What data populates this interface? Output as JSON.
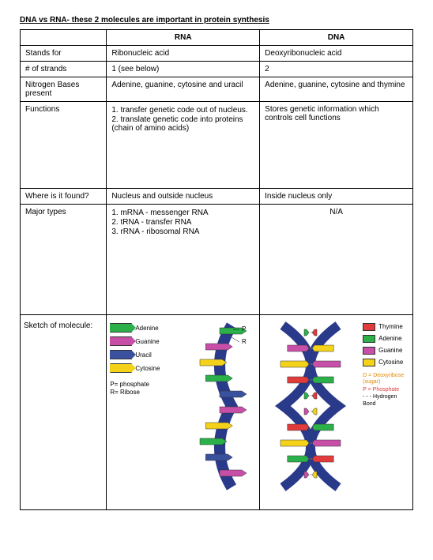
{
  "title": "DNA vs RNA- these 2 molecules are important in protein synthesis",
  "headers": {
    "col1": "",
    "col2": "RNA",
    "col3": "DNA"
  },
  "rows": {
    "stands_for": {
      "label": "Stands for",
      "rna": "Ribonucleic acid",
      "dna": "Deoxyribonucleic acid"
    },
    "strands": {
      "label": "# of strands",
      "rna": "1 (see below)",
      "dna": "2"
    },
    "bases": {
      "label": "Nitrogen Bases present",
      "rna": "Adenine, guanine, cytosine and uracil",
      "dna": "Adenine, guanine, cytosine and thymine"
    },
    "functions": {
      "label": "Functions",
      "rna1": "1. transfer genetic code out of nucleus.",
      "rna2": "2. translate genetic code into proteins (chain of amino acids)",
      "dna": "Stores genetic information which controls cell functions"
    },
    "where": {
      "label": "Where is it found?",
      "rna": "Nucleus and outside nucleus",
      "dna": "Inside nucleus only"
    },
    "types": {
      "label": "Major types",
      "rna1": "1. mRNA - messenger RNA",
      "rna2": "2. tRNA - transfer RNA",
      "rna3": "3. rRNA - ribosomal RNA",
      "dna": "N/A"
    },
    "sketch": {
      "label": "Sketch of molecule:"
    }
  },
  "rna_legend": {
    "adenine": {
      "label": "Adenine",
      "color": "#2bb04a"
    },
    "guanine": {
      "label": "Guanine",
      "color": "#c84fa8"
    },
    "uracil": {
      "label": "Uracil",
      "color": "#3a519e"
    },
    "cytosine": {
      "label": "Cytosine",
      "color": "#f5d21a"
    },
    "p": "P= phosphate",
    "r": "R= Ribose"
  },
  "dna_legend": {
    "thymine": {
      "label": "Thymine",
      "color": "#e23b3b"
    },
    "adenine": {
      "label": "Adenine",
      "color": "#2bb04a"
    },
    "guanine": {
      "label": "Guanine",
      "color": "#c84fa8"
    },
    "cytosine": {
      "label": "Cytosine",
      "color": "#f5d21a"
    },
    "d": "D = Deoxyribose (sugar)",
    "p": "P = Phosphate",
    "h": "- - -  Hydrogen Bond",
    "d_color": "#e08a00"
  },
  "rna_molecule": {
    "backbone_color": "#2a3a8a",
    "bases": [
      {
        "c": "#2bb04a"
      },
      {
        "c": "#c84fa8"
      },
      {
        "c": "#f5d21a"
      },
      {
        "c": "#2bb04a"
      },
      {
        "c": "#3a519e"
      },
      {
        "c": "#c84fa8"
      },
      {
        "c": "#f5d21a"
      },
      {
        "c": "#2bb04a"
      },
      {
        "c": "#3a519e"
      },
      {
        "c": "#c84fa8"
      }
    ],
    "p_label": "P",
    "r_label": "R"
  },
  "dna_molecule": {
    "backbone_color": "#2a3a8a",
    "pairs": [
      {
        "l": "#2bb04a",
        "r": "#e23b3b"
      },
      {
        "l": "#c84fa8",
        "r": "#f5d21a"
      },
      {
        "l": "#f5d21a",
        "r": "#c84fa8"
      },
      {
        "l": "#e23b3b",
        "r": "#2bb04a"
      },
      {
        "l": "#2bb04a",
        "r": "#e23b3b"
      },
      {
        "l": "#c84fa8",
        "r": "#f5d21a"
      },
      {
        "l": "#e23b3b",
        "r": "#2bb04a"
      },
      {
        "l": "#f5d21a",
        "r": "#c84fa8"
      },
      {
        "l": "#2bb04a",
        "r": "#e23b3b"
      },
      {
        "l": "#c84fa8",
        "r": "#f5d21a"
      }
    ]
  }
}
